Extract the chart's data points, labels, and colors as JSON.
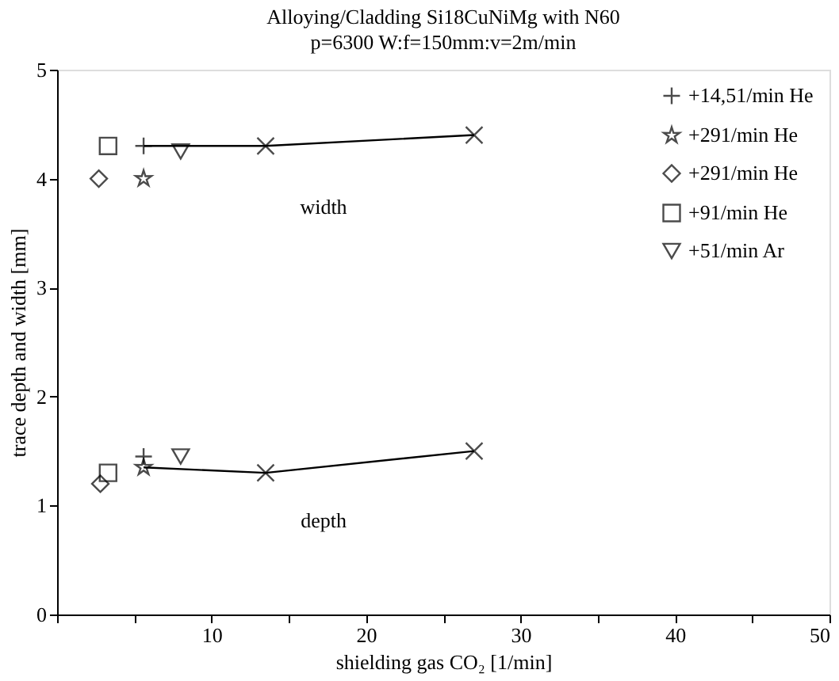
{
  "chart_data": {
    "type": "scatter",
    "title": "Alloying/Cladding Si18CuNiMg with N60",
    "subtitle": "p=6300 W:f=150mm:v=2m/min",
    "xlabel": "shielding gas CO₂ [1/min]",
    "ylabel": "trace depth and width [mm]",
    "xlim": [
      0,
      50
    ],
    "ylim": [
      0,
      5
    ],
    "xticks": [
      {
        "value": 0,
        "label": null
      },
      {
        "value": 5,
        "label": null
      },
      10,
      {
        "value": 15,
        "label": null
      },
      20,
      {
        "value": 25,
        "label": null
      },
      30,
      {
        "value": 35,
        "label": null
      },
      40,
      {
        "value": 45,
        "label": null
      },
      50
    ],
    "yticks": [
      0,
      1,
      2,
      3,
      4,
      5
    ],
    "grid": false,
    "legend": "top right",
    "annotations": [
      "width",
      "depth"
    ],
    "series": [
      {
        "name": "+14,51/min He",
        "color": "#000000",
        "marker": "cross",
        "x": [
          5.6,
          5.6
        ],
        "values": [
          4.3,
          1.45
        ]
      },
      {
        "name": "+291/min He",
        "color": "#000000",
        "marker": "star",
        "x": [
          5.6,
          5.6
        ],
        "values": [
          4.0,
          1.35
        ]
      },
      {
        "name": "+291/min He",
        "color": "#000000",
        "marker": "diamond",
        "x": [
          2.7,
          2.8
        ],
        "values": [
          4.0,
          1.2
        ]
      },
      {
        "name": "+91/min He",
        "color": "#000000",
        "marker": "square",
        "x": [
          3.3,
          3.3
        ],
        "values": [
          4.3,
          1.3
        ]
      },
      {
        "name": "+51/min Ar",
        "color": "#000000",
        "marker": "triangle",
        "x": [
          8.0,
          8.0
        ],
        "values": [
          4.25,
          1.45
        ]
      },
      {
        "type": "line",
        "color": "#000000",
        "marker": "none",
        "line_style": "solid",
        "x": [
          5.6,
          13.5,
          27
        ],
        "values": [
          4.3,
          4.3,
          4.4
        ]
      },
      {
        "type": "line",
        "color": "#000000",
        "marker": "none",
        "line_style": "solid",
        "x": [
          5.6,
          13.5,
          27
        ],
        "values": [
          1.35,
          1.3,
          1.5
        ]
      },
      {
        "color": "#000000",
        "marker": "x",
        "x": [
          13.5,
          27,
          13.5,
          27
        ],
        "values": [
          4.3,
          4.4,
          1.3,
          1.5
        ]
      }
    ]
  }
}
